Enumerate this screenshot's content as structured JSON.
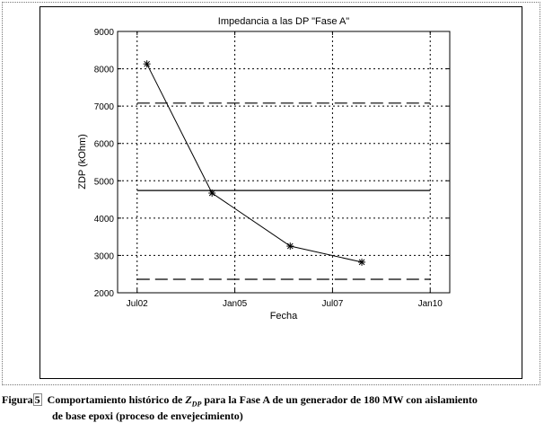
{
  "chart_data": {
    "type": "line",
    "title": "Impedancia a las DP \"Fase A\"",
    "xlabel": "Fecha",
    "ylabel": "ZDP (kOhm)",
    "xlim": [
      "2002-01",
      "2010-07"
    ],
    "ylim": [
      2000,
      9000
    ],
    "x_ticks": [
      "Jul02",
      "Jan05",
      "Jul07",
      "Jan10"
    ],
    "y_ticks": [
      2000,
      3000,
      4000,
      5000,
      6000,
      7000,
      8000,
      9000
    ],
    "grid": true,
    "series": [
      {
        "style": "solid-with-star-markers",
        "color": "#000000",
        "x": [
          "2002-10",
          "2004-06",
          "2006-06",
          "2008-04"
        ],
        "y": [
          8130,
          4670,
          3250,
          2820
        ]
      },
      {
        "style": "solid-reference",
        "color": "#000000",
        "x": [
          "2002-07",
          "2010-01"
        ],
        "y": [
          4740,
          4740
        ]
      },
      {
        "style": "dashed-reference",
        "color": "#000000",
        "x": [
          "2002-07",
          "2010-01"
        ],
        "y": [
          7080,
          7080
        ]
      },
      {
        "style": "dashed-reference",
        "color": "#000000",
        "x": [
          "2002-07",
          "2010-01"
        ],
        "y": [
          2360,
          2360
        ]
      }
    ]
  },
  "caption": {
    "label": "Figura",
    "number": "5",
    "text_before": "Comportamiento histórico de",
    "symbol": "Z",
    "symbol_sub": "DP",
    "text_after": "para la Fase A de un generador de 180 MW con aislamiento",
    "line2": "de base epoxi (proceso de envejecimiento)"
  }
}
